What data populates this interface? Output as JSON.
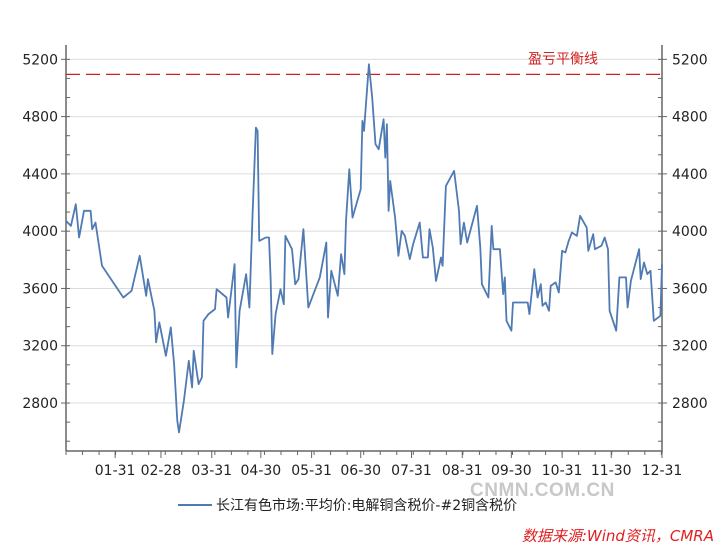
{
  "chart_data": {
    "type": "line",
    "title": "",
    "xlabel": "",
    "ylabel": "",
    "x_ticks": [
      "01-31",
      "02-28",
      "03-31",
      "04-30",
      "05-31",
      "06-30",
      "07-31",
      "08-31",
      "09-30",
      "10-31",
      "11-30",
      "12-31"
    ],
    "y_ticks": [
      2800,
      3200,
      3600,
      4000,
      4400,
      4800,
      5200
    ],
    "ylim": [
      2465,
      5300
    ],
    "xlim": [
      "01-01",
      "12-31"
    ],
    "grid": "horizontal",
    "legend_placement": "bottom",
    "reference_line": {
      "label": "盈亏平衡线",
      "value": 5095,
      "color": "#d02020",
      "style": "dashed"
    },
    "series": [
      {
        "name": "长江有色市场:平均价:电解铜含税价-#2铜含税价",
        "color": "#4f7ab3",
        "points": [
          [
            "01-01",
            4072
          ],
          [
            "01-04",
            4037
          ],
          [
            "01-07",
            4188
          ],
          [
            "01-09",
            3956
          ],
          [
            "01-12",
            4142
          ],
          [
            "01-16",
            4142
          ],
          [
            "01-17",
            4014
          ],
          [
            "01-19",
            4060
          ],
          [
            "01-23",
            3758
          ],
          [
            "02-05",
            3537
          ],
          [
            "02-10",
            3583
          ],
          [
            "02-15",
            3828
          ],
          [
            "02-19",
            3549
          ],
          [
            "02-20",
            3665
          ],
          [
            "02-24",
            3444
          ],
          [
            "02-25",
            3223
          ],
          [
            "02-27",
            3363
          ],
          [
            "03-03",
            3130
          ],
          [
            "03-06",
            3328
          ],
          [
            "03-08",
            3072
          ],
          [
            "03-10",
            2676
          ],
          [
            "03-11",
            2595
          ],
          [
            "03-14",
            2816
          ],
          [
            "03-17",
            3095
          ],
          [
            "03-19",
            2909
          ],
          [
            "03-20",
            3165
          ],
          [
            "03-23",
            2932
          ],
          [
            "03-25",
            2979
          ],
          [
            "03-26",
            3374
          ],
          [
            "03-29",
            3421
          ],
          [
            "04-02",
            3456
          ],
          [
            "04-03",
            3595
          ],
          [
            "04-09",
            3537
          ],
          [
            "04-10",
            3397
          ],
          [
            "04-14",
            3770
          ],
          [
            "04-15",
            3049
          ],
          [
            "04-17",
            3444
          ],
          [
            "04-21",
            3700
          ],
          [
            "04-23",
            3467
          ],
          [
            "04-25",
            4142
          ],
          [
            "04-27",
            4723
          ],
          [
            "04-28",
            4700
          ],
          [
            "04-29",
            3932
          ],
          [
            "05-03",
            3956
          ],
          [
            "05-05",
            3956
          ],
          [
            "05-06",
            3653
          ],
          [
            "05-07",
            3142
          ],
          [
            "05-09",
            3421
          ],
          [
            "05-12",
            3595
          ],
          [
            "05-14",
            3490
          ],
          [
            "05-15",
            3967
          ],
          [
            "05-19",
            3874
          ],
          [
            "05-21",
            3630
          ],
          [
            "05-23",
            3665
          ],
          [
            "05-26",
            4014
          ],
          [
            "05-29",
            3467
          ],
          [
            "06-05",
            3677
          ],
          [
            "06-09",
            3921
          ],
          [
            "06-10",
            3397
          ],
          [
            "06-12",
            3723
          ],
          [
            "06-16",
            3549
          ],
          [
            "06-18",
            3839
          ],
          [
            "06-20",
            3700
          ],
          [
            "06-21",
            4072
          ],
          [
            "06-23",
            4432
          ],
          [
            "06-25",
            4095
          ],
          [
            "06-30",
            4293
          ],
          [
            "07-01",
            4770
          ],
          [
            "07-02",
            4700
          ],
          [
            "07-05",
            5165
          ],
          [
            "07-07",
            4932
          ],
          [
            "07-09",
            4607
          ],
          [
            "07-11",
            4572
          ],
          [
            "07-14",
            4781
          ],
          [
            "07-15",
            4514
          ],
          [
            "07-16",
            4746
          ],
          [
            "07-17",
            4142
          ],
          [
            "07-18",
            4351
          ],
          [
            "07-21",
            4095
          ],
          [
            "07-23",
            3828
          ],
          [
            "07-25",
            4002
          ],
          [
            "07-27",
            3967
          ],
          [
            "07-30",
            3805
          ],
          [
            "08-01",
            3909
          ],
          [
            "08-05",
            4060
          ],
          [
            "08-07",
            3816
          ],
          [
            "08-10",
            3816
          ],
          [
            "08-11",
            4014
          ],
          [
            "08-13",
            3886
          ],
          [
            "08-15",
            3653
          ],
          [
            "08-18",
            3816
          ],
          [
            "08-19",
            3758
          ],
          [
            "08-21",
            4316
          ],
          [
            "08-26",
            4421
          ],
          [
            "08-29",
            4142
          ],
          [
            "08-30",
            3909
          ],
          [
            "09-01",
            4060
          ],
          [
            "09-03",
            3921
          ],
          [
            "09-09",
            4177
          ],
          [
            "09-11",
            3886
          ],
          [
            "09-12",
            3630
          ],
          [
            "09-16",
            3537
          ],
          [
            "09-18",
            4037
          ],
          [
            "09-19",
            3874
          ],
          [
            "09-23",
            3874
          ],
          [
            "09-25",
            3560
          ],
          [
            "09-26",
            3677
          ],
          [
            "09-27",
            3374
          ],
          [
            "09-30",
            3305
          ],
          [
            "10-01",
            3502
          ],
          [
            "10-10",
            3502
          ],
          [
            "10-11",
            3421
          ],
          [
            "10-14",
            3735
          ],
          [
            "10-16",
            3537
          ],
          [
            "10-18",
            3630
          ],
          [
            "10-19",
            3479
          ],
          [
            "10-21",
            3502
          ],
          [
            "10-23",
            3444
          ],
          [
            "10-24",
            3618
          ],
          [
            "10-27",
            3642
          ],
          [
            "10-29",
            3572
          ],
          [
            "10-31",
            3863
          ],
          [
            "11-02",
            3851
          ],
          [
            "11-04",
            3932
          ],
          [
            "11-06",
            3991
          ],
          [
            "11-09",
            3967
          ],
          [
            "11-11",
            4107
          ],
          [
            "11-15",
            4025
          ],
          [
            "11-16",
            3863
          ],
          [
            "11-19",
            3979
          ],
          [
            "11-20",
            3874
          ],
          [
            "11-24",
            3898
          ],
          [
            "11-26",
            3956
          ],
          [
            "11-28",
            3874
          ],
          [
            "11-29",
            3444
          ],
          [
            "12-03",
            3305
          ],
          [
            "12-05",
            3677
          ],
          [
            "12-09",
            3677
          ],
          [
            "12-10",
            3467
          ],
          [
            "12-12",
            3653
          ],
          [
            "12-17",
            3874
          ],
          [
            "12-18",
            3665
          ],
          [
            "12-20",
            3781
          ],
          [
            "12-22",
            3700
          ],
          [
            "12-24",
            3723
          ],
          [
            "12-26",
            3374
          ],
          [
            "12-30",
            3409
          ],
          [
            "12-31",
            3770
          ]
        ]
      }
    ]
  },
  "legend": {
    "label": "长江有色市场:平均价:电解铜含税价-#2铜含税价"
  },
  "watermark": "CNMN.COM.CN",
  "source": "数据来源:Wind资讯，CMRA"
}
